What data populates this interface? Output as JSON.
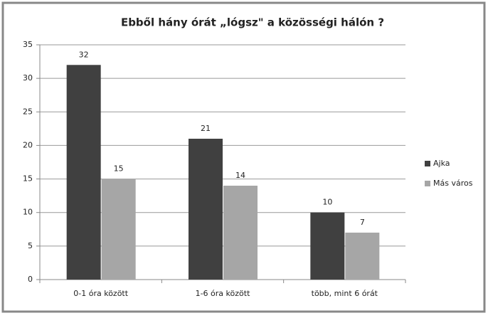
{
  "chart_data": {
    "type": "bar",
    "title": "Ebből hány órát „lógsz\" a közösségi hálón ?",
    "categories": [
      "0-1 óra között",
      "1-6 óra között",
      "több, mint 6 órát"
    ],
    "series": [
      {
        "name": "Ajka",
        "color": "#404040",
        "values": [
          32,
          21,
          10
        ]
      },
      {
        "name": "Más város",
        "color": "#a6a6a6",
        "values": [
          15,
          14,
          7
        ]
      }
    ],
    "ylim": [
      0,
      35
    ],
    "yticks": [
      0,
      5,
      10,
      15,
      20,
      25,
      30,
      35
    ],
    "grid": true,
    "legend": "right"
  }
}
